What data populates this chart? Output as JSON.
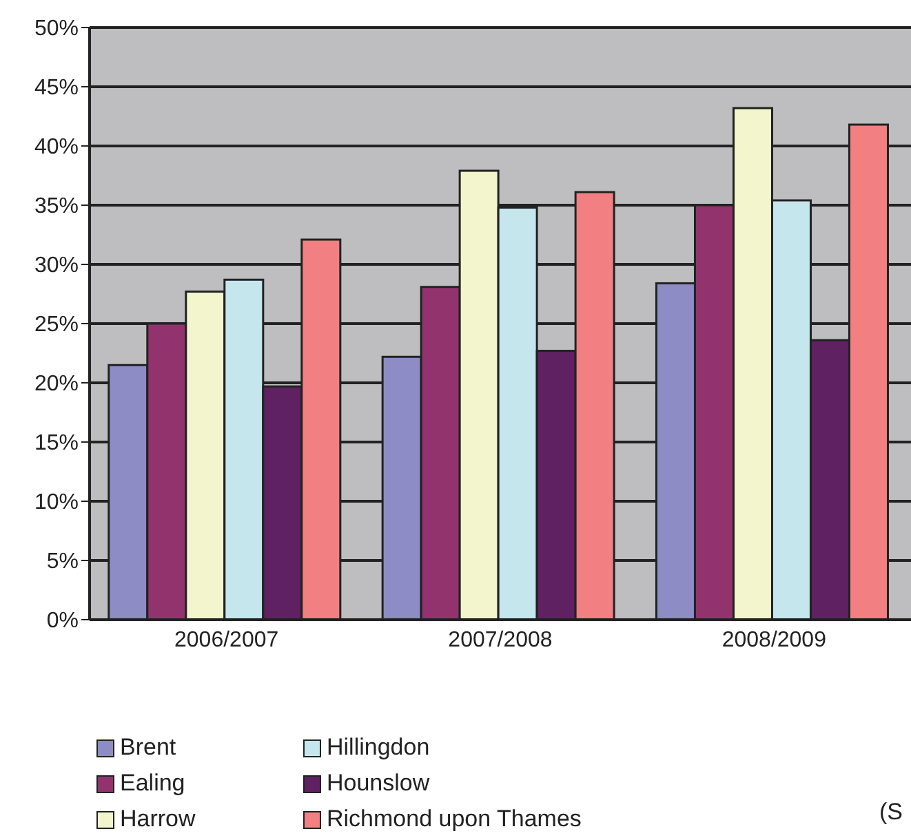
{
  "chart_data": {
    "type": "bar",
    "categories": [
      "2006/2007",
      "2007/2008",
      "2008/2009"
    ],
    "series": [
      {
        "name": "Brent",
        "color": "#8e8cc4",
        "values": [
          21.5,
          22.2,
          28.4
        ]
      },
      {
        "name": "Ealing",
        "color": "#93336e",
        "values": [
          25,
          28.1,
          35
        ]
      },
      {
        "name": "Harrow",
        "color": "#f3f5cc",
        "values": [
          27.7,
          37.9,
          43.2
        ]
      },
      {
        "name": "Hillingdon",
        "color": "#c6e6ee",
        "values": [
          28.7,
          34.8,
          35.4
        ]
      },
      {
        "name": "Hounslow",
        "color": "#5f2161",
        "values": [
          19.7,
          22.7,
          23.6
        ]
      },
      {
        "name": "Richmond upon Thames",
        "color": "#f27f82",
        "values": [
          32.1,
          36.1,
          41.8
        ]
      }
    ],
    "ylim": [
      0,
      50
    ],
    "yticks": [
      {
        "value": 0,
        "label": "0%"
      },
      {
        "value": 5,
        "label": "5%"
      },
      {
        "value": 10,
        "label": "10%"
      },
      {
        "value": 15,
        "label": "15%"
      },
      {
        "value": 20,
        "label": "20%"
      },
      {
        "value": 25,
        "label": "25%"
      },
      {
        "value": 30,
        "label": "30%"
      },
      {
        "value": 35,
        "label": "35%"
      },
      {
        "value": 40,
        "label": "40%"
      },
      {
        "value": 45,
        "label": "45%"
      },
      {
        "value": 50,
        "label": "50%"
      }
    ],
    "grid": "y",
    "legend": "bottom",
    "annotations": [
      "(S"
    ]
  }
}
